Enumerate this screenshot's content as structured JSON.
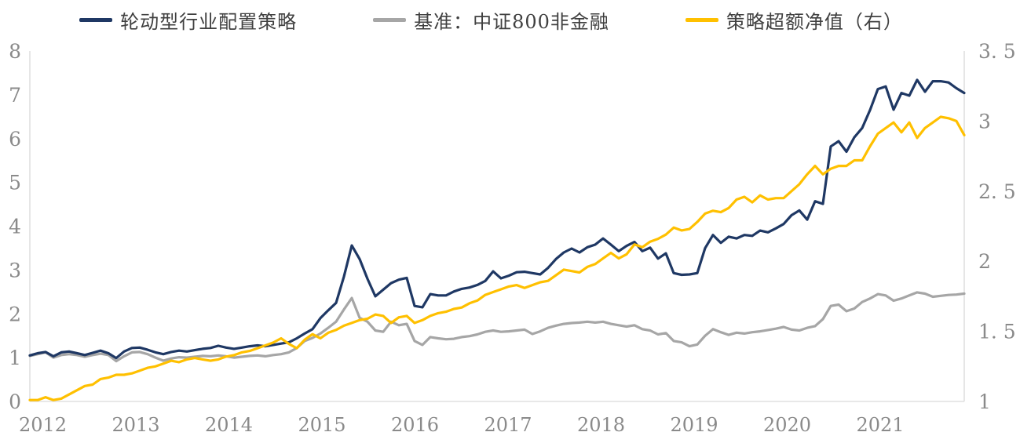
{
  "chart_data": {
    "type": "line",
    "title": "",
    "x_start": "2012-01",
    "x_end": "2021-12",
    "x_interval": "monthly",
    "x_tick_labels": [
      "2012",
      "2013",
      "2014",
      "2015",
      "2016",
      "2017",
      "2018",
      "2019",
      "2020",
      "2021"
    ],
    "grid": false,
    "legend_position": "top",
    "axis_line_color": "#d9d9d9",
    "tick_label_color": "#8a8a8a",
    "left_axis": {
      "min": 0,
      "max": 8,
      "ticks": [
        {
          "value": 0,
          "label": "0"
        },
        {
          "value": 1,
          "label": "1"
        },
        {
          "value": 2,
          "label": "2"
        },
        {
          "value": 3,
          "label": "3"
        },
        {
          "value": 4,
          "label": "4"
        },
        {
          "value": 5,
          "label": "5"
        },
        {
          "value": 6,
          "label": "6"
        },
        {
          "value": 7,
          "label": "7"
        },
        {
          "value": 8,
          "label": "8"
        }
      ]
    },
    "right_axis": {
      "min": 1,
      "max": 3.5,
      "ticks": [
        {
          "value": 1,
          "label": "1"
        },
        {
          "value": 1.5,
          "label": "1. 5"
        },
        {
          "value": 2,
          "label": "2"
        },
        {
          "value": 2.5,
          "label": "2. 5"
        },
        {
          "value": 3,
          "label": "3"
        },
        {
          "value": 3.5,
          "label": "3. 5"
        }
      ]
    },
    "series": [
      {
        "name": "轮动型行业配置策略",
        "axis": "left",
        "color": "#1f3864",
        "values": [
          1.05,
          1.1,
          1.13,
          1.03,
          1.12,
          1.14,
          1.1,
          1.06,
          1.11,
          1.16,
          1.1,
          0.99,
          1.14,
          1.22,
          1.23,
          1.18,
          1.12,
          1.08,
          1.13,
          1.16,
          1.14,
          1.17,
          1.2,
          1.22,
          1.27,
          1.23,
          1.2,
          1.23,
          1.26,
          1.28,
          1.26,
          1.29,
          1.32,
          1.35,
          1.44,
          1.55,
          1.65,
          1.9,
          2.08,
          2.25,
          2.85,
          3.56,
          3.25,
          2.8,
          2.4,
          2.55,
          2.7,
          2.78,
          2.82,
          2.18,
          2.15,
          2.45,
          2.42,
          2.42,
          2.51,
          2.57,
          2.6,
          2.66,
          2.75,
          2.97,
          2.81,
          2.87,
          2.95,
          2.96,
          2.93,
          2.9,
          3.05,
          3.25,
          3.4,
          3.49,
          3.4,
          3.52,
          3.58,
          3.72,
          3.58,
          3.43,
          3.55,
          3.64,
          3.43,
          3.51,
          3.26,
          3.38,
          2.93,
          2.89,
          2.9,
          2.93,
          3.5,
          3.8,
          3.62,
          3.76,
          3.72,
          3.8,
          3.78,
          3.9,
          3.86,
          3.95,
          4.05,
          4.25,
          4.36,
          4.15,
          4.57,
          4.51,
          5.82,
          5.94,
          5.7,
          6.03,
          6.24,
          6.65,
          7.13,
          7.19,
          6.66,
          7.04,
          6.98,
          7.34,
          7.07,
          7.31,
          7.31,
          7.28,
          7.15,
          7.04
        ]
      },
      {
        "name": "基准：中证800非金融",
        "axis": "left",
        "color": "#a6a6a6",
        "values": [
          1.04,
          1.08,
          1.12,
          1.0,
          1.06,
          1.08,
          1.06,
          1.02,
          1.06,
          1.09,
          1.06,
          0.92,
          1.03,
          1.12,
          1.13,
          1.08,
          1.0,
          0.93,
          0.98,
          1.01,
          1.0,
          1.02,
          1.04,
          1.03,
          1.05,
          1.03,
          1.0,
          1.02,
          1.04,
          1.05,
          1.03,
          1.06,
          1.08,
          1.12,
          1.22,
          1.38,
          1.45,
          1.55,
          1.68,
          1.82,
          2.1,
          2.36,
          1.91,
          1.82,
          1.62,
          1.59,
          1.82,
          1.74,
          1.77,
          1.38,
          1.29,
          1.47,
          1.44,
          1.42,
          1.43,
          1.47,
          1.49,
          1.53,
          1.59,
          1.62,
          1.59,
          1.6,
          1.62,
          1.64,
          1.54,
          1.6,
          1.68,
          1.73,
          1.77,
          1.79,
          1.8,
          1.82,
          1.8,
          1.82,
          1.77,
          1.74,
          1.71,
          1.74,
          1.65,
          1.62,
          1.53,
          1.56,
          1.38,
          1.35,
          1.26,
          1.3,
          1.5,
          1.65,
          1.58,
          1.52,
          1.57,
          1.55,
          1.58,
          1.6,
          1.63,
          1.66,
          1.7,
          1.64,
          1.62,
          1.68,
          1.72,
          1.88,
          2.18,
          2.21,
          2.06,
          2.12,
          2.27,
          2.35,
          2.45,
          2.42,
          2.3,
          2.35,
          2.42,
          2.49,
          2.46,
          2.39,
          2.41,
          2.43,
          2.44,
          2.46
        ]
      },
      {
        "name": "策略超额净值（右）",
        "axis": "right",
        "color": "#ffc000",
        "values": [
          1.01,
          1.01,
          1.03,
          1.01,
          1.02,
          1.05,
          1.08,
          1.11,
          1.12,
          1.16,
          1.17,
          1.19,
          1.19,
          1.2,
          1.22,
          1.24,
          1.25,
          1.27,
          1.29,
          1.28,
          1.3,
          1.31,
          1.3,
          1.29,
          1.3,
          1.32,
          1.33,
          1.35,
          1.36,
          1.38,
          1.4,
          1.42,
          1.45,
          1.41,
          1.38,
          1.44,
          1.48,
          1.45,
          1.49,
          1.51,
          1.54,
          1.56,
          1.58,
          1.59,
          1.62,
          1.61,
          1.56,
          1.6,
          1.61,
          1.56,
          1.58,
          1.61,
          1.63,
          1.64,
          1.66,
          1.67,
          1.7,
          1.72,
          1.76,
          1.78,
          1.8,
          1.82,
          1.83,
          1.81,
          1.83,
          1.85,
          1.86,
          1.9,
          1.94,
          1.93,
          1.92,
          1.96,
          1.98,
          2.02,
          2.06,
          2.02,
          2.05,
          2.12,
          2.1,
          2.14,
          2.16,
          2.19,
          2.24,
          2.22,
          2.23,
          2.28,
          2.34,
          2.36,
          2.35,
          2.38,
          2.44,
          2.46,
          2.42,
          2.47,
          2.44,
          2.45,
          2.45,
          2.5,
          2.55,
          2.62,
          2.68,
          2.62,
          2.66,
          2.68,
          2.68,
          2.72,
          2.72,
          2.82,
          2.91,
          2.95,
          2.99,
          2.92,
          2.99,
          2.88,
          2.95,
          2.99,
          3.03,
          3.02,
          3.0,
          2.9
        ]
      }
    ]
  }
}
